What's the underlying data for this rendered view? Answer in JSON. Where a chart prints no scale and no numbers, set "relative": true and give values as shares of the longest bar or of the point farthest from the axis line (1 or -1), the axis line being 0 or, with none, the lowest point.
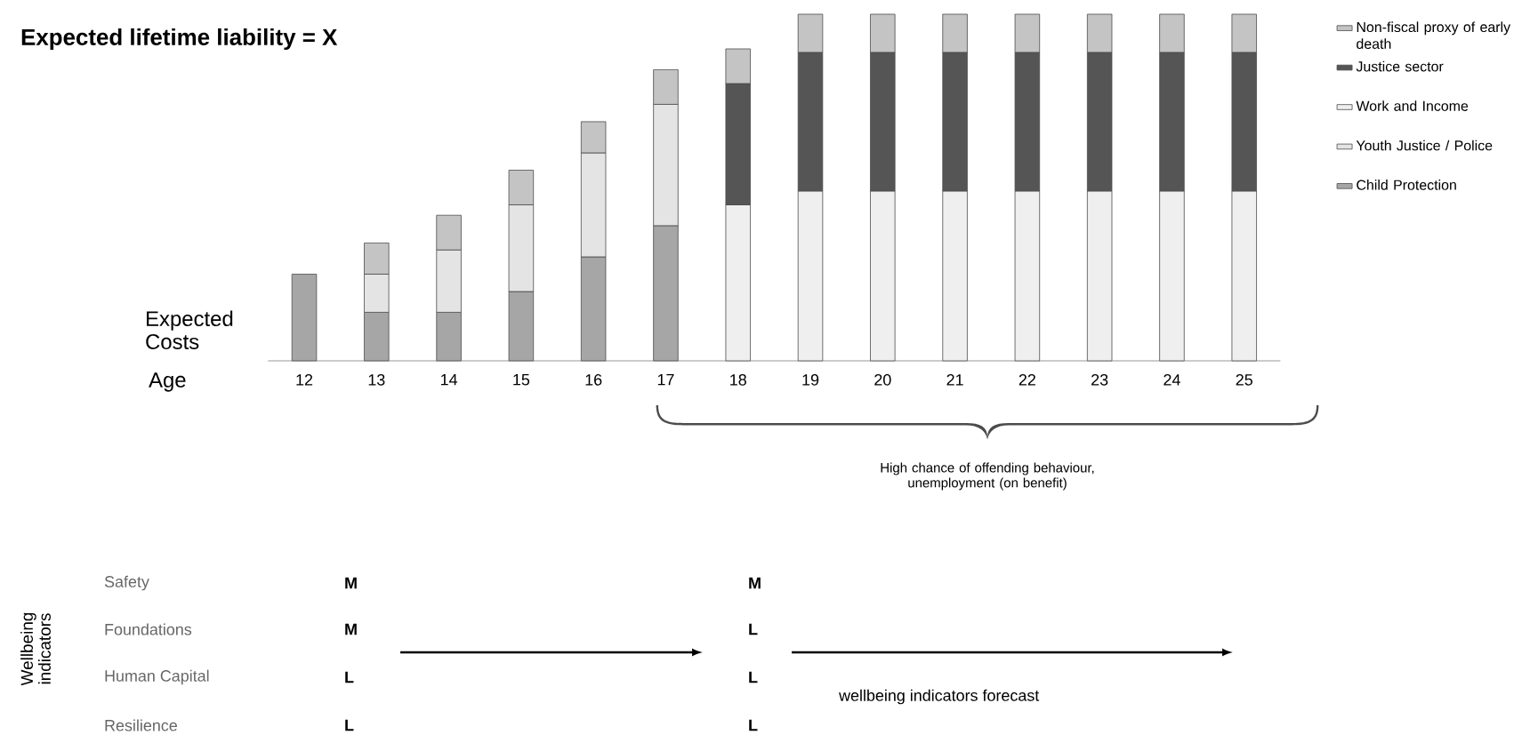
{
  "chart_data": {
    "type": "bar",
    "stacked": true,
    "relative": true,
    "title": "Expected lifetime liability = X",
    "xlabel": "Age",
    "ylabel": "Expected Costs",
    "categories": [
      "12",
      "13",
      "14",
      "15",
      "16",
      "17",
      "18",
      "19",
      "20",
      "21",
      "22",
      "23",
      "24",
      "25"
    ],
    "series": [
      {
        "name": "Child Protection",
        "color": "#a6a6a6",
        "values": [
          0.25,
          0.14,
          0.14,
          0.2,
          0.3,
          0.39,
          null,
          null,
          null,
          null,
          null,
          null,
          null,
          null
        ]
      },
      {
        "name": "Youth Justice / Police",
        "color": "#e4e4e4",
        "values": [
          null,
          0.11,
          0.18,
          0.25,
          0.3,
          0.35,
          null,
          null,
          null,
          null,
          null,
          null,
          null,
          null
        ]
      },
      {
        "name": "Work and Income",
        "color": "#efefef",
        "values": [
          null,
          null,
          null,
          null,
          null,
          null,
          0.45,
          0.49,
          0.49,
          0.49,
          0.49,
          0.49,
          0.49,
          0.49
        ]
      },
      {
        "name": "Justice sector",
        "color": "#555555",
        "values": [
          null,
          null,
          null,
          null,
          null,
          null,
          0.35,
          0.4,
          0.4,
          0.4,
          0.4,
          0.4,
          0.4,
          0.4
        ]
      },
      {
        "name": "Non-fiscal proxy of early death",
        "color": "#c4c4c4",
        "values": [
          null,
          0.09,
          0.1,
          0.1,
          0.09,
          0.1,
          0.1,
          0.11,
          0.11,
          0.11,
          0.11,
          0.11,
          0.11,
          0.11
        ]
      }
    ],
    "legend": "right",
    "annotations": [
      "High chance of offending behaviour, unemployment (on benefit)",
      "Wellbeing indicators",
      "Safety",
      "Foundations",
      "Human Capital",
      "Resilience",
      "M",
      "M",
      "L",
      "L",
      "M",
      "L",
      "L",
      "L",
      "wellbeing indicators forecast"
    ]
  }
}
